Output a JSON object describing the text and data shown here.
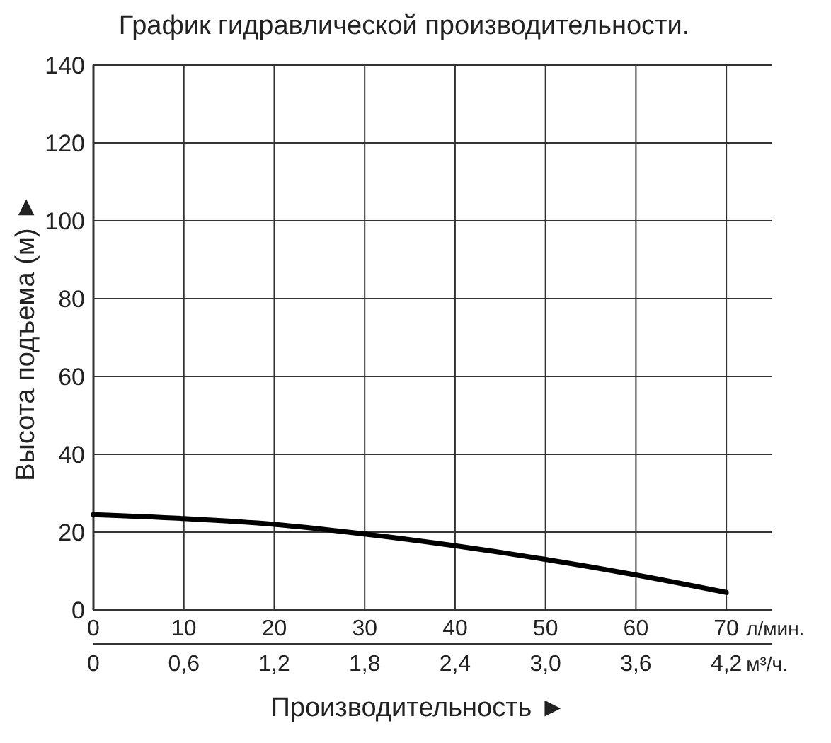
{
  "chart_data": {
    "type": "line",
    "title": "График гидравлической производительности.",
    "xlabel": "Производительность ►",
    "ylabel": "Высота подъема (м) ►",
    "x": [
      0,
      10,
      20,
      30,
      40,
      50,
      60,
      70
    ],
    "series": [
      {
        "color": "#000000",
        "values": [
          24.5,
          23.5,
          22,
          19.5,
          16.5,
          13,
          9,
          4.5
        ]
      }
    ],
    "xlim": [
      0,
      75
    ],
    "xticks": [
      0,
      10,
      20,
      30,
      40,
      50,
      60,
      70
    ],
    "x2lim": [
      0,
      4.5
    ],
    "x2ticks": [
      0,
      {
        "value": 0.6,
        "label": "0,6"
      },
      {
        "value": 1.2,
        "label": "1,2"
      },
      {
        "value": 1.8,
        "label": "1,8"
      },
      {
        "value": 2.4,
        "label": "2,4"
      },
      {
        "value": 3.0,
        "label": "3,0"
      },
      {
        "value": 3.6,
        "label": "3,6"
      },
      {
        "value": 4.2,
        "label": "4,2"
      }
    ],
    "ylim": [
      0,
      140
    ],
    "yticks": [
      0,
      20,
      40,
      60,
      80,
      100,
      120,
      140
    ],
    "annotations": [
      "л/мин.",
      "м³/ч."
    ],
    "grid": true,
    "marker": "none",
    "line_style": "solid"
  }
}
